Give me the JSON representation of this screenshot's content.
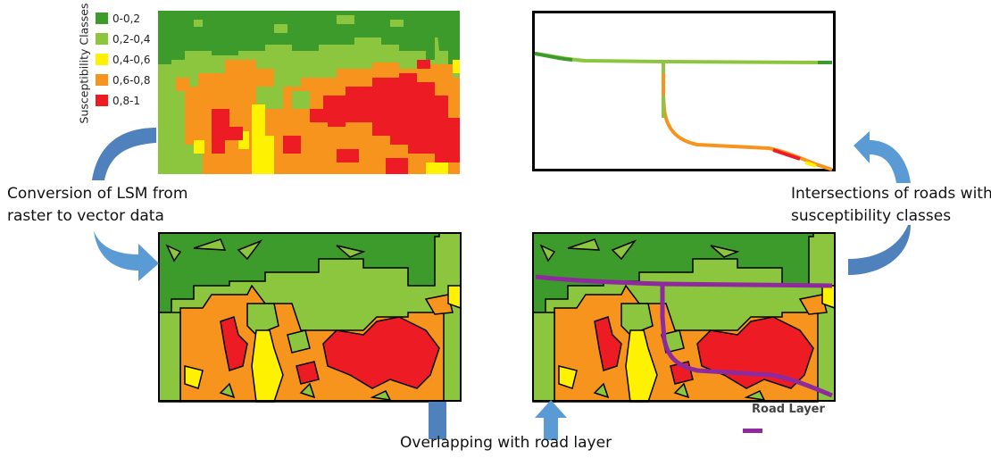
{
  "legend": {
    "title": "Susceptibility Classes",
    "classes": [
      {
        "label": "0-0,2",
        "color": "#3d9b2b"
      },
      {
        "label": "0,2-0,4",
        "color": "#8cc63f"
      },
      {
        "label": "0,4-0,6",
        "color": "#fff200"
      },
      {
        "label": "0,6-0,8",
        "color": "#f7941d"
      },
      {
        "label": "0,8-1",
        "color": "#ed1c24"
      }
    ]
  },
  "captions": {
    "conversion_line1": "Conversion of LSM from",
    "conversion_line2": "raster to vector data",
    "intersection_line1": "Intersections of roads with",
    "intersection_line2": "susceptibility classes",
    "overlapping": "Overlapping with road layer"
  },
  "road_legend": {
    "label": "Road Layer",
    "color": "#8e2a9e"
  }
}
